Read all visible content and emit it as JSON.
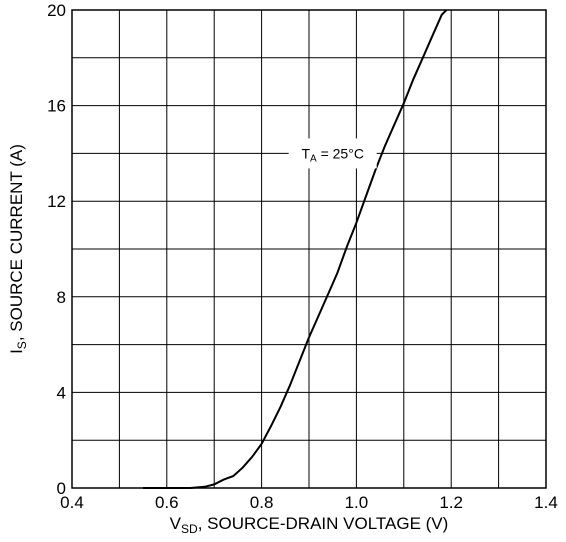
{
  "chart_data": {
    "type": "line",
    "title": "",
    "xlabel": {
      "main": "V",
      "sub": "SD",
      "rest": ", SOURCE-DRAIN VOLTAGE (V)"
    },
    "ylabel": {
      "main": "I",
      "sub": "S",
      "rest": ", SOURCE CURRENT (A)"
    },
    "xlim": [
      0.4,
      1.4
    ],
    "ylim": [
      0,
      20
    ],
    "x_ticks": [
      0.4,
      0.6,
      0.8,
      1.0,
      1.2,
      1.4
    ],
    "x_tick_labels": [
      "0.4",
      "0.6",
      "0.8",
      "1.0",
      "1.2",
      "1.4"
    ],
    "y_ticks": [
      0,
      4,
      8,
      12,
      16,
      20
    ],
    "y_tick_labels": [
      "0",
      "4",
      "8",
      "12",
      "16",
      "20"
    ],
    "grid": true,
    "annotation": {
      "main": "T",
      "sub": "A",
      "rest": " = 25°C",
      "x": 0.95,
      "y": 14
    },
    "series": [
      {
        "x": [
          0.55,
          0.6,
          0.65,
          0.68,
          0.7,
          0.72,
          0.74,
          0.76,
          0.78,
          0.8,
          0.82,
          0.84,
          0.86,
          0.88,
          0.9,
          0.92,
          0.94,
          0.96,
          0.98,
          1.0,
          1.02,
          1.04,
          1.06,
          1.08,
          1.1,
          1.12,
          1.14,
          1.16,
          1.18,
          1.19
        ],
        "y": [
          0.0,
          0.0,
          0.0,
          0.05,
          0.15,
          0.35,
          0.5,
          0.85,
          1.3,
          1.85,
          2.6,
          3.4,
          4.3,
          5.3,
          6.3,
          7.2,
          8.1,
          9.0,
          10.1,
          11.1,
          12.2,
          13.3,
          14.3,
          15.2,
          16.1,
          17.1,
          18.0,
          18.9,
          19.8,
          20.0
        ]
      }
    ]
  }
}
